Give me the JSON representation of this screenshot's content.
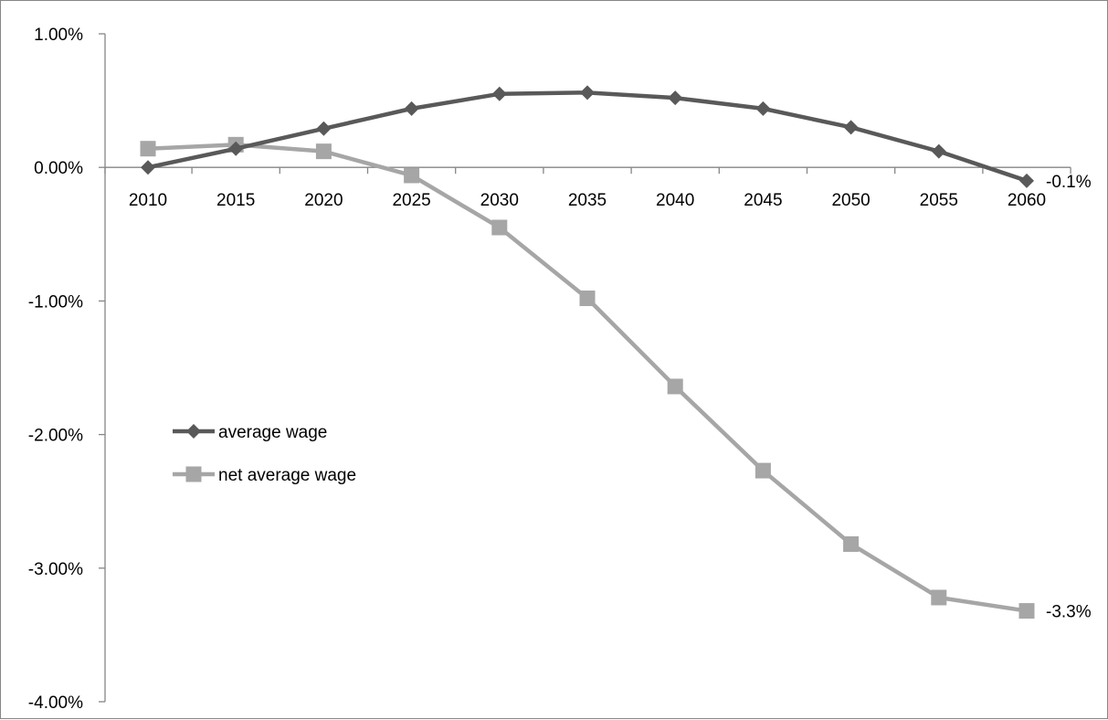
{
  "chart_data": {
    "type": "line",
    "title": "",
    "xlabel": "",
    "ylabel": "",
    "x": [
      "2010",
      "2015",
      "2020",
      "2025",
      "2030",
      "2035",
      "2040",
      "2045",
      "2050",
      "2055",
      "2060"
    ],
    "ylim": [
      -4.0,
      1.0
    ],
    "y_ticks": [
      "1.00%",
      "0.00%",
      "-1.00%",
      "-2.00%",
      "-3.00%",
      "-4.00%"
    ],
    "grid": false,
    "legend_position": "left",
    "series": [
      {
        "name": "average wage",
        "color": "#595959",
        "marker": "diamond",
        "values": [
          0.0,
          0.14,
          0.29,
          0.44,
          0.55,
          0.56,
          0.52,
          0.44,
          0.3,
          0.12,
          -0.1
        ],
        "end_label": "-0.1%"
      },
      {
        "name": "net average wage",
        "color": "#a6a6a6",
        "marker": "square",
        "values": [
          0.14,
          0.17,
          0.12,
          -0.06,
          -0.45,
          -0.98,
          -1.64,
          -2.27,
          -2.82,
          -3.22,
          -3.32
        ],
        "end_label": "-3.3%"
      }
    ]
  }
}
